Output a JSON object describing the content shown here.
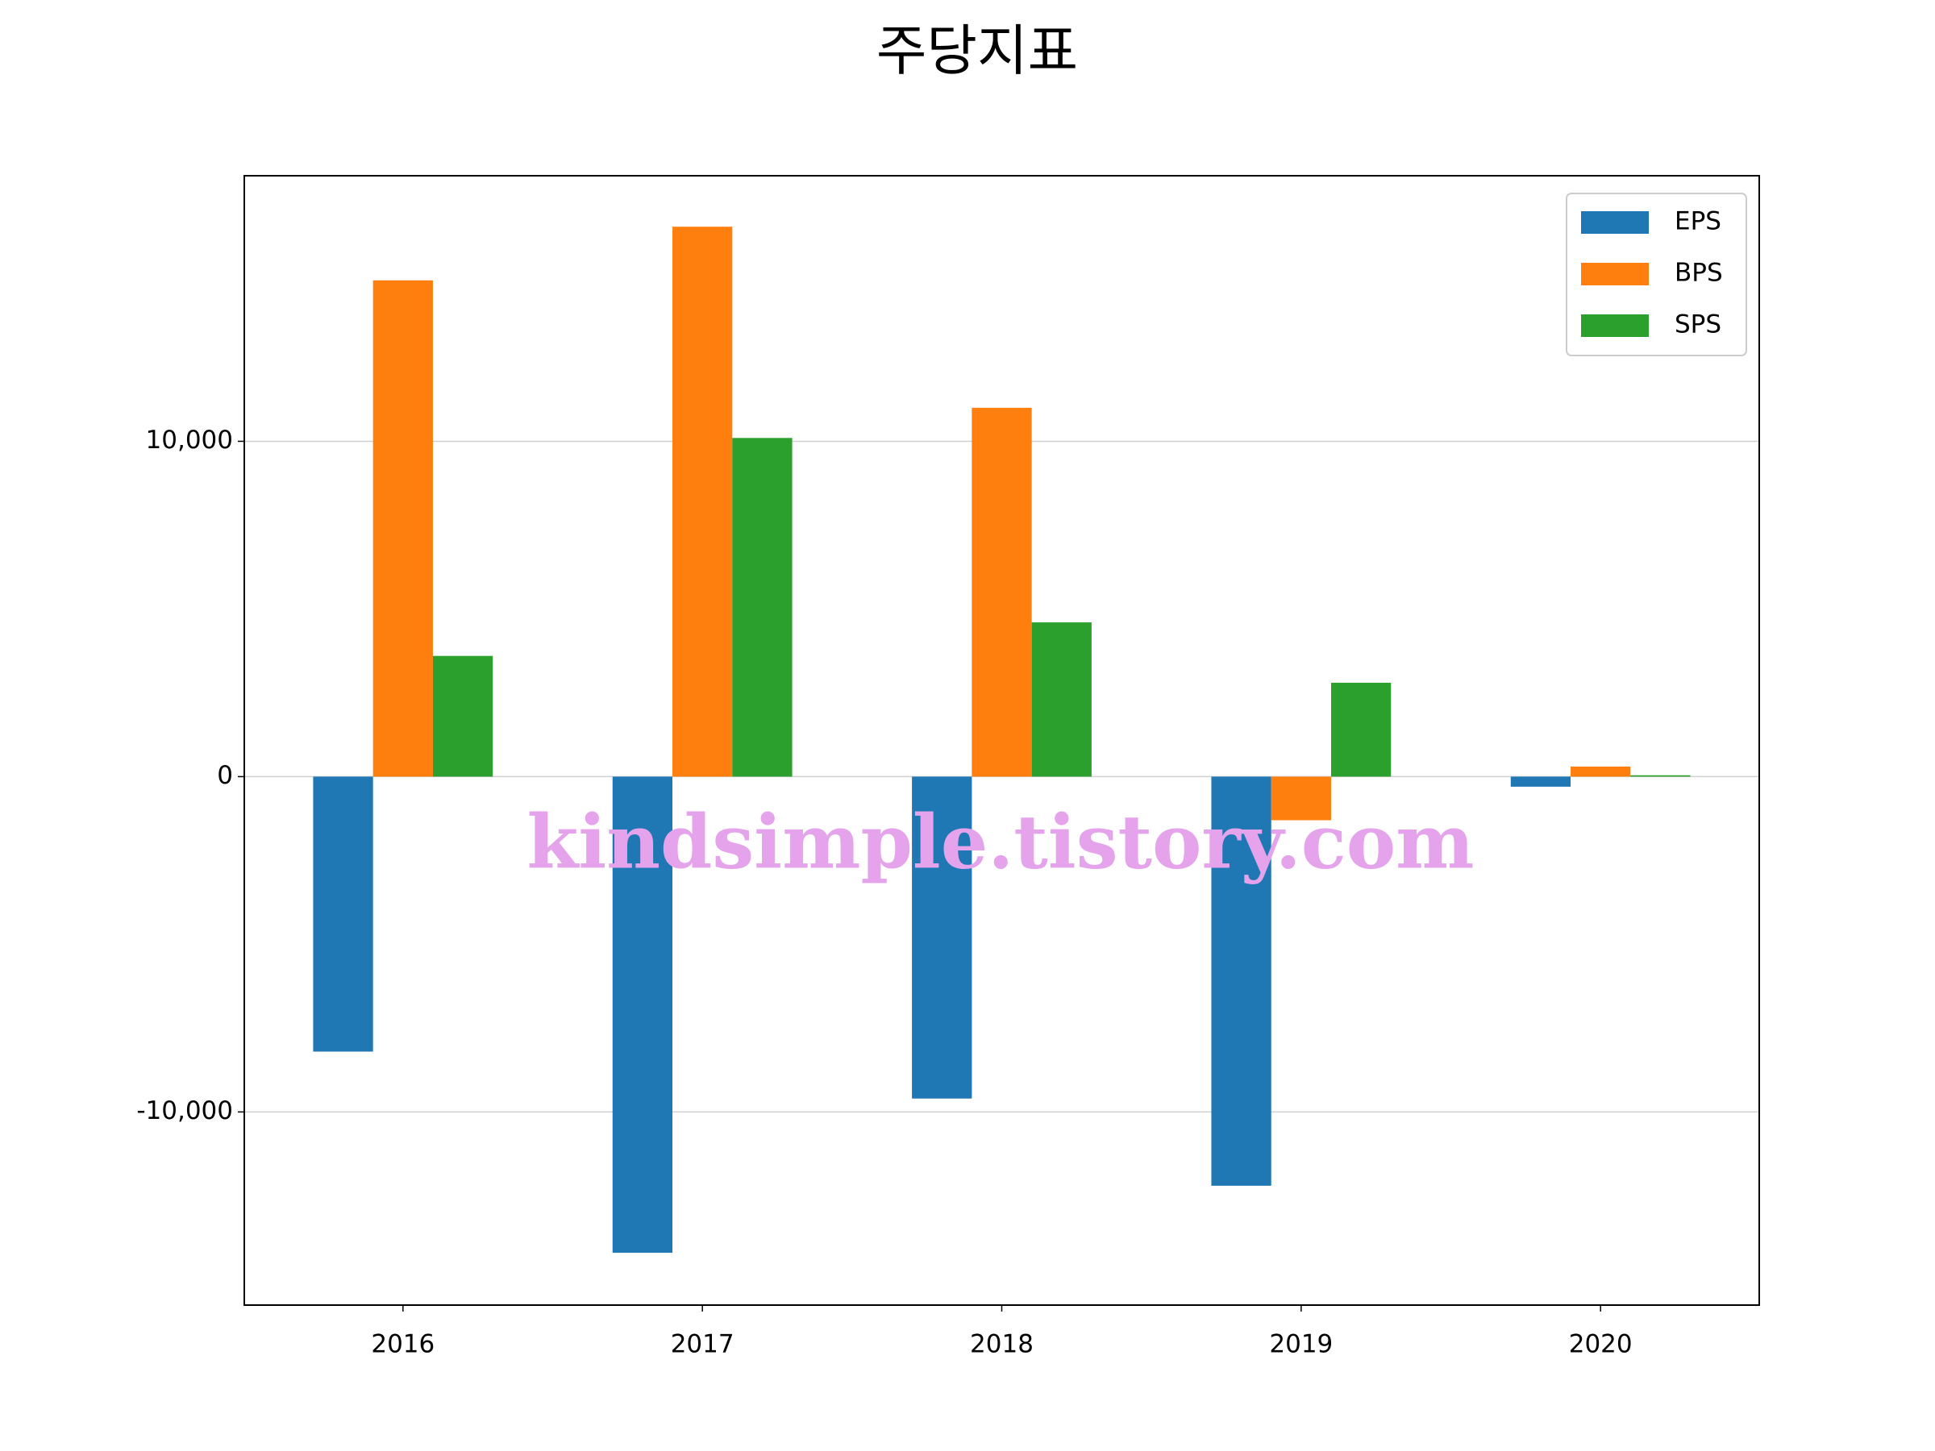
{
  "chart_data": {
    "type": "bar",
    "title": "주당지표",
    "categories": [
      "2016",
      "2017",
      "2018",
      "2019",
      "2020"
    ],
    "series": [
      {
        "name": "EPS",
        "color": "#1f77b4",
        "values": [
          -8200,
          -14200,
          -9600,
          -12200,
          -300
        ]
      },
      {
        "name": "BPS",
        "color": "#ff7f0e",
        "values": [
          14800,
          16400,
          11000,
          -1300,
          300
        ]
      },
      {
        "name": "SPS",
        "color": "#2ca02c",
        "values": [
          3600,
          10100,
          4600,
          2800,
          40
        ]
      }
    ],
    "ylim": [
      -15760,
      17920
    ],
    "yticks": [
      {
        "value": -10000,
        "label": "-10,000"
      },
      0,
      {
        "value": 10000,
        "label": "10,000"
      }
    ],
    "grid": true,
    "legend": "upper right",
    "watermark": "kindsimple.tistory.com"
  }
}
